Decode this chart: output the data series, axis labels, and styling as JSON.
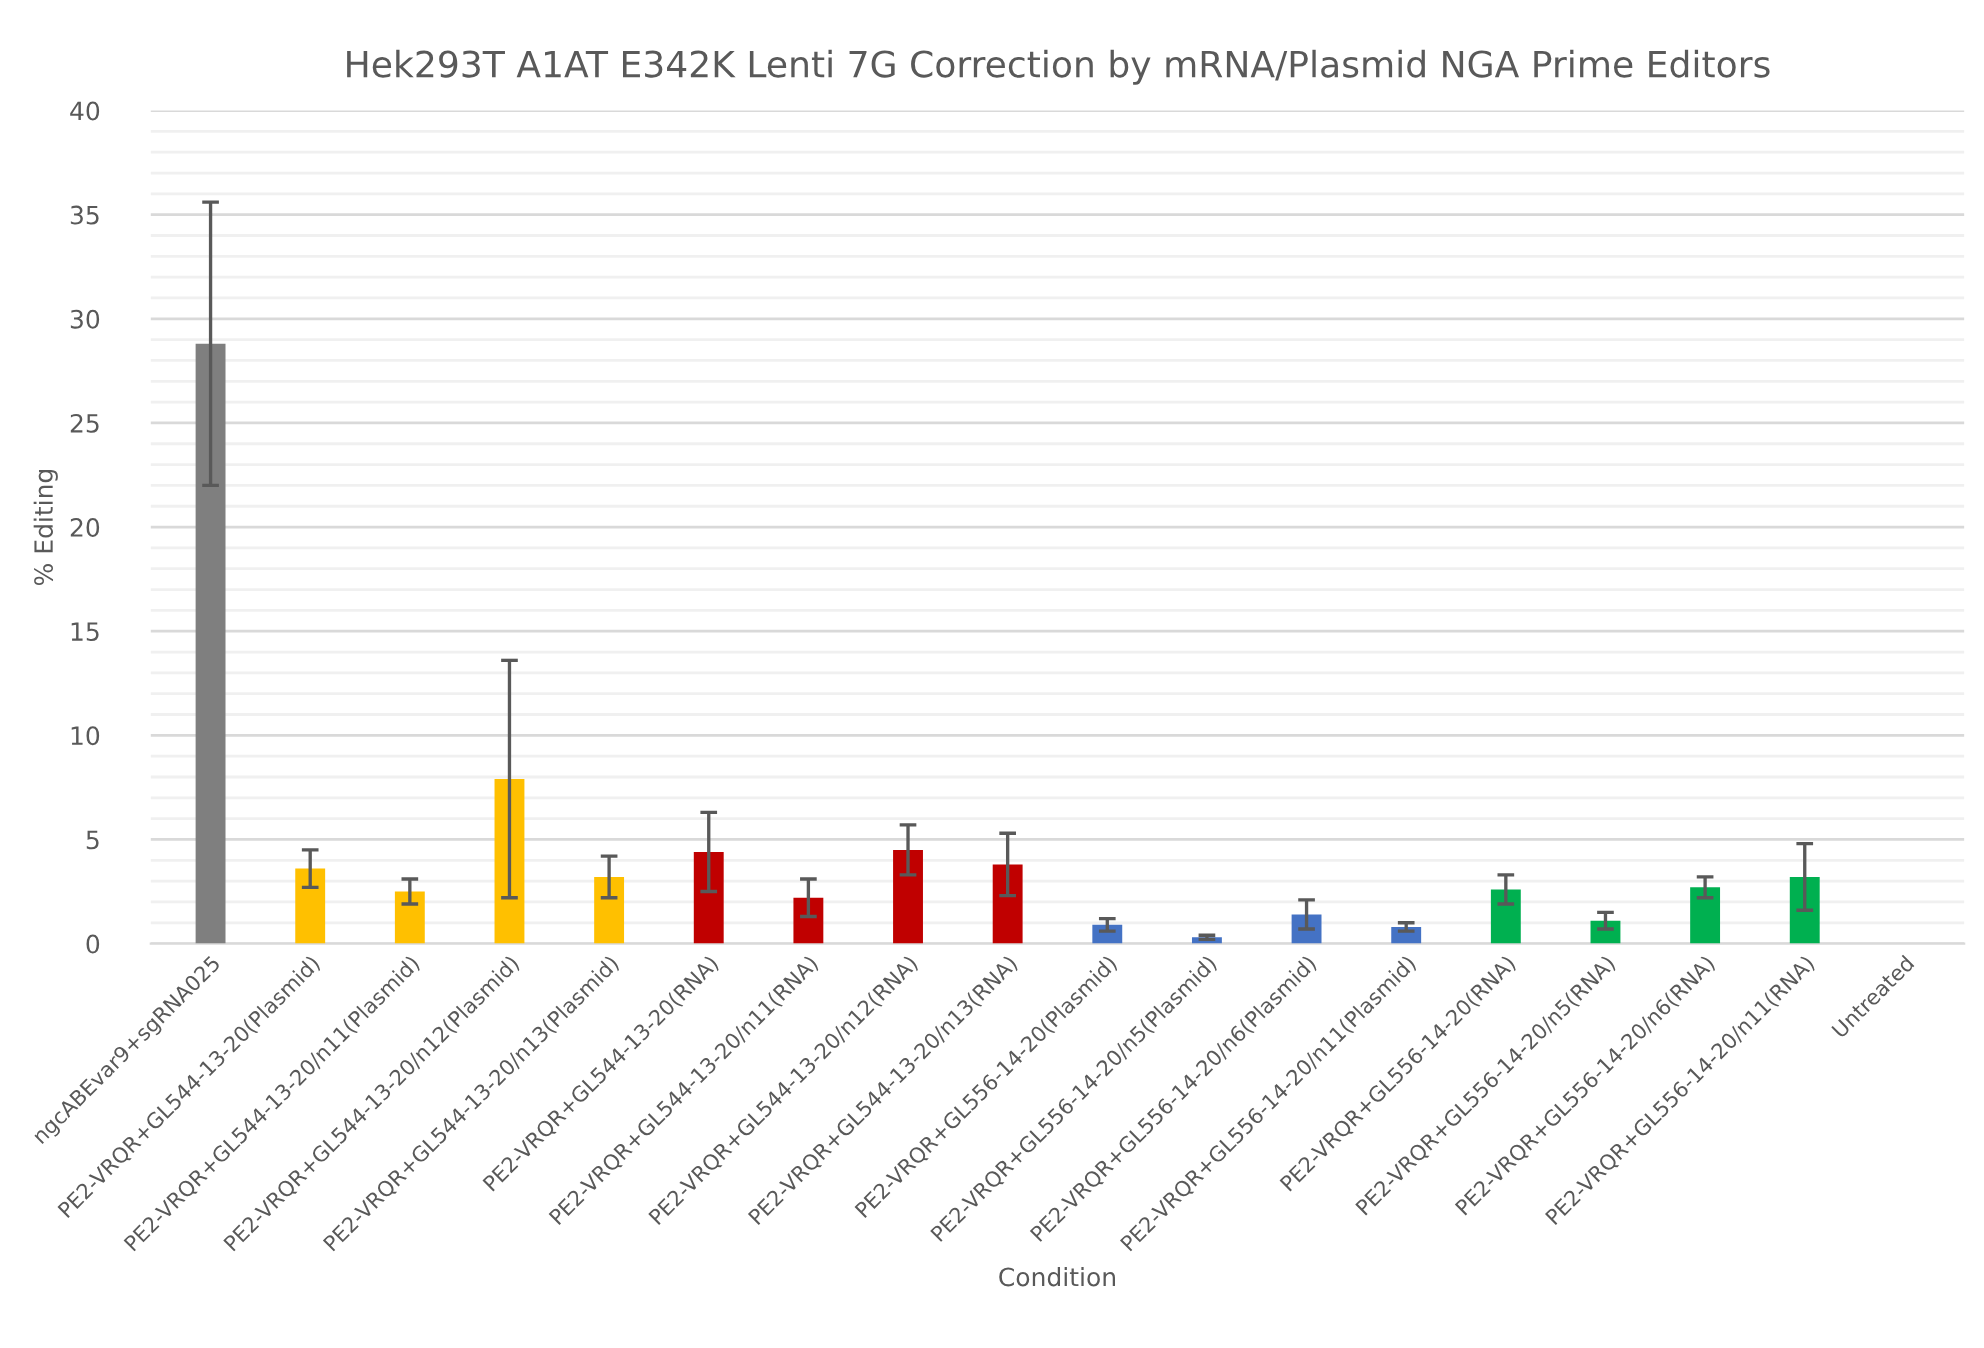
{
  "chart_data": {
    "type": "bar",
    "title": "Hek293T A1AT E342K Lenti 7G Correction by mRNA/Plasmid NGA Prime Editors",
    "xlabel": "Condition",
    "ylabel": "% Editing",
    "categories": [
      "ngcABEvar9+sgRNA025",
      "PE2-VRQR+GL544-13-20(Plasmid)",
      "PE2-VRQR+GL544-13-20/n11(Plasmid)",
      "PE2-VRQR+GL544-13-20/n12(Plasmid)",
      "PE2-VRQR+GL544-13-20/n13(Plasmid)",
      "PE2-VRQR+GL544-13-20(RNA)",
      "PE2-VRQR+GL544-13-20/n11(RNA)",
      "PE2-VRQR+GL544-13-20/n12(RNA)",
      "PE2-VRQR+GL544-13-20/n13(RNA)",
      "PE2-VRQR+GL556-14-20(Plasmid)",
      "PE2-VRQR+GL556-14-20/n5(Plasmid)",
      "PE2-VRQR+GL556-14-20/n6(Plasmid)",
      "PE2-VRQR+GL556-14-20/n11(Plasmid)",
      "PE2-VRQR+GL556-14-20(RNA)",
      "PE2-VRQR+GL556-14-20/n5(RNA)",
      "PE2-VRQR+GL556-14-20/n6(RNA)",
      "PE2-VRQR+GL556-14-20/n11(RNA)",
      "Untreated"
    ],
    "values": [
      28.8,
      3.6,
      2.5,
      7.9,
      3.2,
      4.4,
      2.2,
      4.5,
      3.8,
      0.9,
      0.3,
      1.4,
      0.8,
      2.6,
      1.1,
      2.7,
      3.2,
      0
    ],
    "errors": [
      6.8,
      0.9,
      0.6,
      5.7,
      1.0,
      1.9,
      0.9,
      1.2,
      1.5,
      0.3,
      0.1,
      0.7,
      0.2,
      0.7,
      0.4,
      0.5,
      1.6,
      null
    ],
    "colors": [
      "#7f7f7f",
      "#ffc000",
      "#ffc000",
      "#ffc000",
      "#ffc000",
      "#c00000",
      "#c00000",
      "#c00000",
      "#c00000",
      "#4472c4",
      "#4472c4",
      "#4472c4",
      "#4472c4",
      "#00b050",
      "#00b050",
      "#00b050",
      "#00b050",
      "#00b050"
    ],
    "ylim": [
      0,
      40
    ],
    "yticks": [
      0,
      {
        "value": 1,
        "label": null
      },
      {
        "value": 2,
        "label": null
      },
      {
        "value": 3,
        "label": null
      },
      {
        "value": 4,
        "label": null
      },
      5,
      {
        "value": 6,
        "label": null
      },
      {
        "value": 7,
        "label": null
      },
      {
        "value": 8,
        "label": null
      },
      {
        "value": 9,
        "label": null
      },
      10,
      {
        "value": 11,
        "label": null
      },
      {
        "value": 12,
        "label": null
      },
      {
        "value": 13,
        "label": null
      },
      {
        "value": 14,
        "label": null
      },
      15,
      {
        "value": 16,
        "label": null
      },
      {
        "value": 17,
        "label": null
      },
      {
        "value": 18,
        "label": null
      },
      {
        "value": 19,
        "label": null
      },
      20,
      {
        "value": 21,
        "label": null
      },
      {
        "value": 22,
        "label": null
      },
      {
        "value": 23,
        "label": null
      },
      {
        "value": 24,
        "label": null
      },
      25,
      {
        "value": 26,
        "label": null
      },
      {
        "value": 27,
        "label": null
      },
      {
        "value": 28,
        "label": null
      },
      {
        "value": 29,
        "label": null
      },
      30,
      {
        "value": 31,
        "label": null
      },
      {
        "value": 32,
        "label": null
      },
      {
        "value": 33,
        "label": null
      },
      {
        "value": 34,
        "label": null
      },
      35,
      {
        "value": 36,
        "label": null
      },
      {
        "value": 37,
        "label": null
      },
      {
        "value": 38,
        "label": null
      },
      {
        "value": 39,
        "label": null
      },
      40
    ],
    "grid": "y"
  }
}
